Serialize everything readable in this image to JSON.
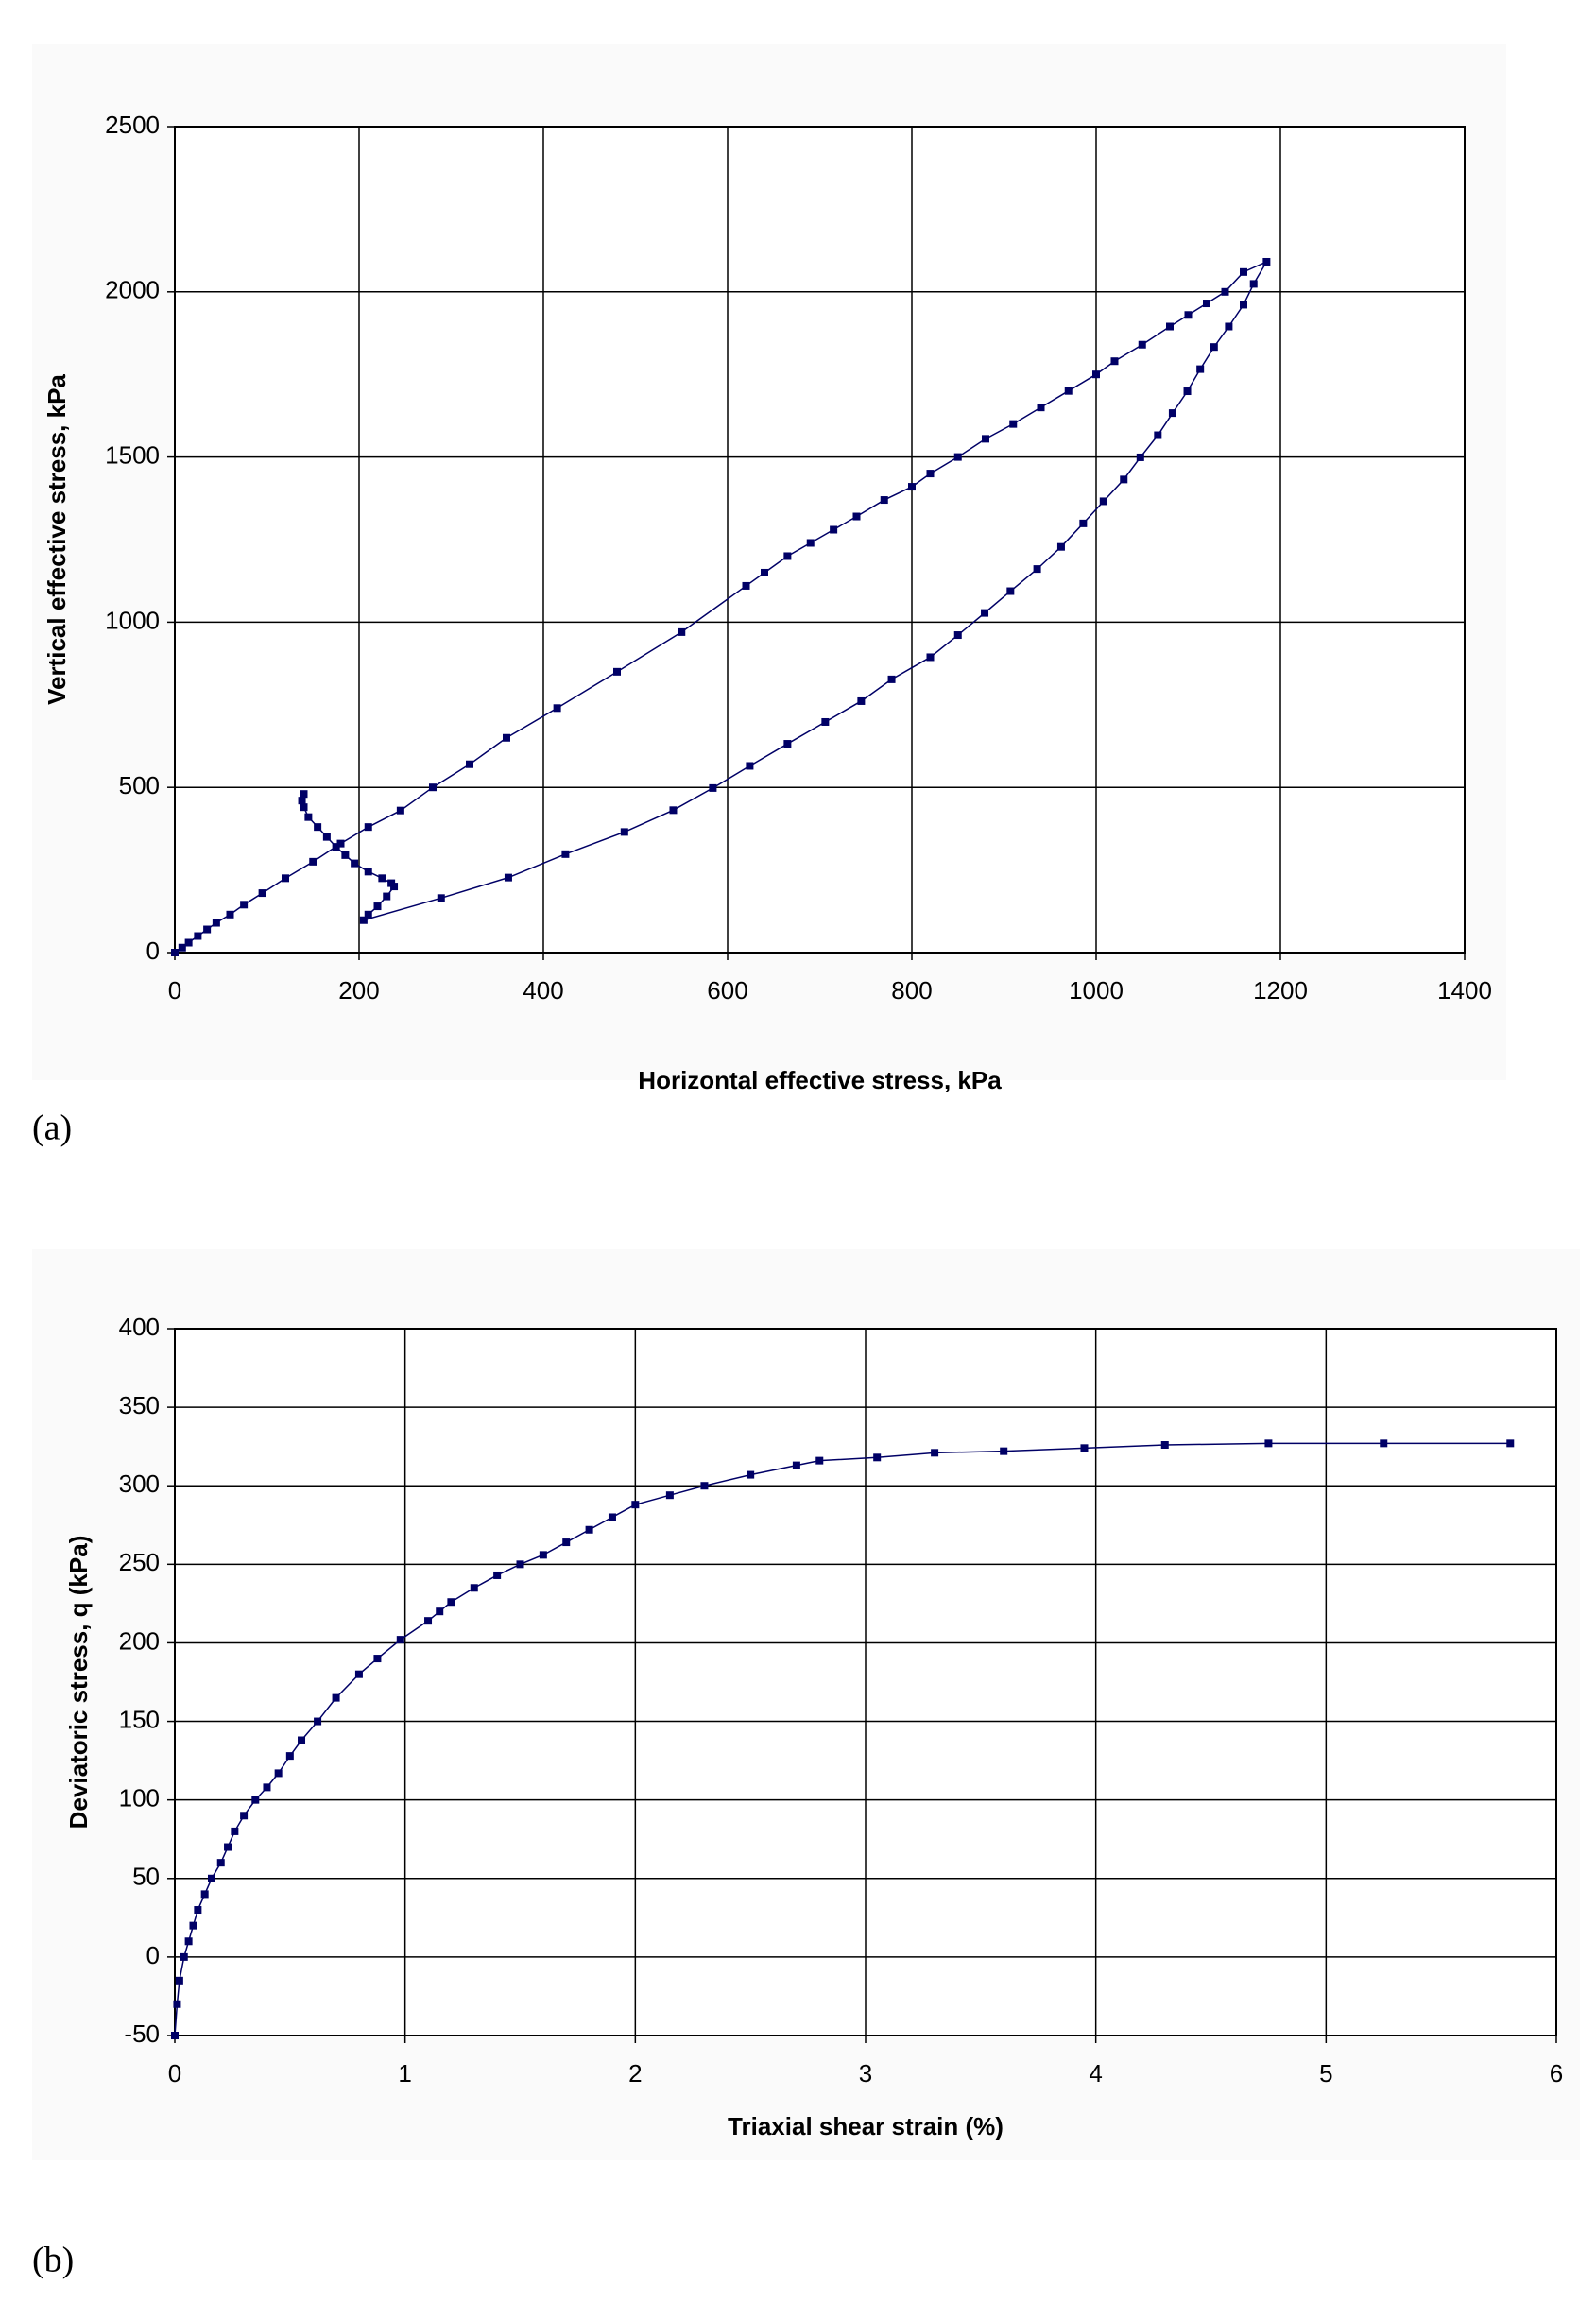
{
  "chart_data": [
    {
      "type": "line",
      "panel_label": "(a)",
      "x_label": "Horizontal effective stress,  kPa",
      "y_label": "Vertical effective stress,  kPa",
      "color": "#000066",
      "grid": true,
      "xlim": [
        0,
        1400
      ],
      "xticks": [
        0,
        200,
        400,
        600,
        800,
        1000,
        1200,
        1400
      ],
      "ylim": [
        0,
        2500
      ],
      "yticks": [
        0,
        500,
        1000,
        1500,
        2000,
        2500
      ],
      "x": [
        140,
        138,
        140,
        145,
        155,
        165,
        175,
        185,
        195,
        210,
        225,
        235,
        238,
        230,
        220,
        210,
        205,
        289,
        362,
        424,
        488,
        541,
        584,
        624,
        665,
        706,
        745,
        778,
        820,
        850,
        879,
        907,
        936,
        962,
        986,
        1008,
        1030,
        1048,
        1067,
        1083,
        1099,
        1113,
        1128,
        1144,
        1160,
        1171,
        1185,
        1160,
        1140,
        1120,
        1100,
        1080,
        1050,
        1020,
        1000,
        970,
        940,
        910,
        880,
        850,
        820,
        800,
        770,
        740,
        715,
        690,
        665,
        640,
        620,
        550,
        480,
        415,
        360,
        320,
        280,
        245,
        210,
        180,
        150,
        120,
        95,
        75,
        60,
        45,
        35,
        25,
        15,
        8,
        0
      ],
      "values": [
        480,
        460,
        440,
        410,
        380,
        350,
        320,
        295,
        270,
        245,
        225,
        210,
        200,
        170,
        140,
        115,
        98,
        165,
        227,
        298,
        365,
        431,
        498,
        565,
        632,
        698,
        761,
        827,
        894,
        961,
        1028,
        1094,
        1161,
        1228,
        1299,
        1366,
        1432,
        1499,
        1566,
        1633,
        1699,
        1766,
        1833,
        1895,
        1961,
        2024,
        2091,
        2060,
        2000,
        1965,
        1930,
        1895,
        1840,
        1790,
        1750,
        1700,
        1650,
        1600,
        1555,
        1500,
        1450,
        1410,
        1370,
        1320,
        1280,
        1240,
        1200,
        1150,
        1110,
        970,
        850,
        740,
        650,
        570,
        500,
        430,
        380,
        330,
        275,
        225,
        180,
        145,
        115,
        90,
        70,
        50,
        30,
        15,
        0
      ]
    },
    {
      "type": "line",
      "panel_label": "(b)",
      "x_label": "Triaxial shear strain (%)",
      "y_label": "Deviatoric stress, q (kPa)",
      "color": "#000066",
      "grid": true,
      "xlim": [
        0,
        6
      ],
      "xticks": [
        0,
        1,
        2,
        3,
        4,
        5,
        6
      ],
      "ylim": [
        -50,
        400
      ],
      "yticks": [
        -50,
        0,
        50,
        100,
        150,
        200,
        250,
        300,
        350,
        400
      ],
      "x": [
        0,
        0.01,
        0.02,
        0.04,
        0.06,
        0.08,
        0.1,
        0.13,
        0.16,
        0.2,
        0.23,
        0.26,
        0.3,
        0.35,
        0.4,
        0.45,
        0.5,
        0.55,
        0.62,
        0.7,
        0.8,
        0.88,
        0.98,
        1.1,
        1.15,
        1.2,
        1.3,
        1.4,
        1.5,
        1.6,
        1.7,
        1.8,
        1.9,
        2.0,
        2.15,
        2.3,
        2.5,
        2.7,
        2.8,
        3.05,
        3.3,
        3.6,
        3.95,
        4.3,
        4.75,
        5.25,
        5.8
      ],
      "values": [
        -50,
        -30,
        -15,
        0,
        10,
        20,
        30,
        40,
        50,
        60,
        70,
        80,
        90,
        100,
        108,
        117,
        128,
        138,
        150,
        165,
        180,
        190,
        202,
        214,
        220,
        226,
        235,
        243,
        250,
        256,
        264,
        272,
        280,
        288,
        294,
        300,
        307,
        313,
        316,
        318,
        321,
        322,
        324,
        326,
        327,
        327,
        327
      ]
    }
  ]
}
